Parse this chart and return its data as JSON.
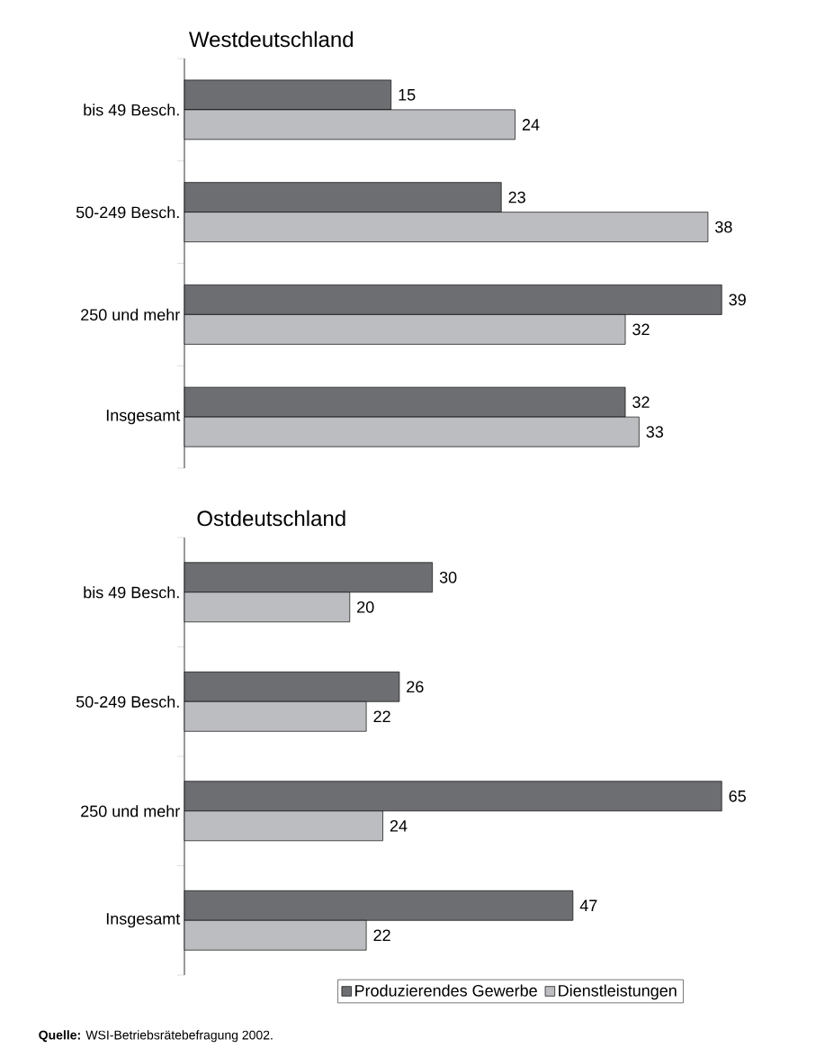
{
  "chart_data": [
    {
      "type": "bar",
      "orientation": "horizontal",
      "title": "Westdeutschland",
      "categories": [
        "bis 49 Besch.",
        "50-249 Besch.",
        "250 und mehr",
        "Insgesamt"
      ],
      "series": [
        {
          "color": "#6d6e71",
          "values": [
            15,
            23,
            39,
            32
          ]
        },
        {
          "color": "#bcbdc0",
          "values": [
            24,
            38,
            32,
            33
          ]
        }
      ],
      "data_labels": true,
      "legend": false
    },
    {
      "type": "bar",
      "orientation": "horizontal",
      "title": "Ostdeutschland",
      "categories": [
        "bis 49 Besch.",
        "50-249 Besch.",
        "250 und mehr",
        "Insgesamt"
      ],
      "series": [
        {
          "name": "Produzierendes Gewerbe",
          "color": "#6d6e71",
          "values": [
            30,
            26,
            65,
            47
          ]
        },
        {
          "name": "Dienstleistungen",
          "color": "#bcbdc0",
          "values": [
            20,
            22,
            24,
            22
          ]
        }
      ],
      "data_labels": true,
      "legend": "bottom right",
      "annotations": [
        "**Quelle:** WSI-Betriebsrätebefragung 2002."
      ]
    }
  ]
}
